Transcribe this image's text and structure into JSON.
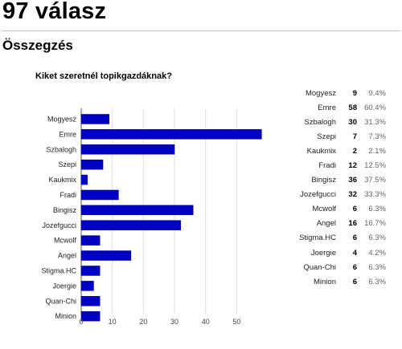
{
  "header": {
    "title": "97 válasz",
    "section": "Összegzés"
  },
  "question": {
    "text": "Kiket szeretnél topikgazdáknak?"
  },
  "colors": {
    "bar": "#0000c2",
    "bar_edge": "#00008c",
    "grid": "#dddddd",
    "axis": "#555555"
  },
  "chart_data": {
    "type": "bar",
    "orientation": "horizontal",
    "categories": [
      "Mogyesz",
      "Emre",
      "Szbalogh",
      "Szepi",
      "Kaukmix",
      "Fradi",
      "Bingisz",
      "Jozefgucci",
      "Mcwolf",
      "Angel",
      "Stigma.HC",
      "Joergie",
      "Quan-Chi",
      "Minion"
    ],
    "values": [
      9,
      58,
      30,
      7,
      2,
      12,
      36,
      32,
      6,
      16,
      6,
      4,
      6,
      6
    ],
    "xlim": [
      0,
      58
    ],
    "xticks": [
      0,
      10,
      20,
      30,
      40,
      50
    ],
    "grid": true,
    "legend": "none"
  },
  "summary": [
    {
      "name": "Mogyesz",
      "count": "9",
      "pct": "9.4%"
    },
    {
      "name": "Emre",
      "count": "58",
      "pct": "60.4%"
    },
    {
      "name": "Szbalogh",
      "count": "30",
      "pct": "31.3%"
    },
    {
      "name": "Szepi",
      "count": "7",
      "pct": "7.3%"
    },
    {
      "name": "Kaukmix",
      "count": "2",
      "pct": "2.1%"
    },
    {
      "name": "Fradi",
      "count": "12",
      "pct": "12.5%"
    },
    {
      "name": "Bingisz",
      "count": "36",
      "pct": "37.5%"
    },
    {
      "name": "Jozefgucci",
      "count": "32",
      "pct": "33.3%"
    },
    {
      "name": "Mcwolf",
      "count": "6",
      "pct": "6.3%"
    },
    {
      "name": "Angel",
      "count": "16",
      "pct": "16.7%"
    },
    {
      "name": "Stigma.HC",
      "count": "6",
      "pct": "6.3%"
    },
    {
      "name": "Joergie",
      "count": "4",
      "pct": "4.2%"
    },
    {
      "name": "Quan-Chi",
      "count": "6",
      "pct": "6.3%"
    },
    {
      "name": "Minion",
      "count": "6",
      "pct": "6.3%"
    }
  ]
}
